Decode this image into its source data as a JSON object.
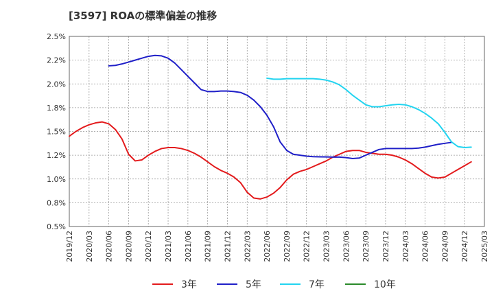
{
  "chart_data": {
    "type": "line",
    "title": "[3597]  ROAの標準偏差の推移",
    "xlabel": "",
    "ylabel": "",
    "ylim": [
      0.5,
      2.5
    ],
    "y_ticks": [
      0.5,
      0.75,
      1.0,
      1.25,
      1.5,
      1.75,
      2.0,
      2.25,
      2.5
    ],
    "y_tick_labels": [
      "0.5%",
      "0.8%",
      "1.0%",
      "1.2%",
      "1.5%",
      "1.8%",
      "2.0%",
      "2.2%",
      "2.5%"
    ],
    "x_tick_labels": [
      "2019/12",
      "2020/03",
      "2020/06",
      "2020/09",
      "2020/12",
      "2021/03",
      "2021/06",
      "2021/09",
      "2021/12",
      "2022/03",
      "2022/06",
      "2022/09",
      "2022/12",
      "2023/03",
      "2023/06",
      "2023/09",
      "2023/12",
      "2024/03",
      "2024/06",
      "2024/09",
      "2024/12",
      "2025/03"
    ],
    "grid": true,
    "legend_position": "bottom",
    "series": [
      {
        "name": "3年",
        "color": "#e31a1c",
        "start_index": 0,
        "values": [
          1.45,
          1.5,
          1.54,
          1.57,
          1.59,
          1.6,
          1.58,
          1.52,
          1.42,
          1.26,
          1.19,
          1.2,
          1.25,
          1.29,
          1.32,
          1.33,
          1.33,
          1.32,
          1.3,
          1.27,
          1.23,
          1.18,
          1.13,
          1.09,
          1.06,
          1.02,
          0.96,
          0.86,
          0.8,
          0.79,
          0.81,
          0.85,
          0.91,
          0.99,
          1.05,
          1.08,
          1.1,
          1.13,
          1.16,
          1.19,
          1.23,
          1.26,
          1.29,
          1.3,
          1.3,
          1.28,
          1.27,
          1.26,
          1.26,
          1.25,
          1.23,
          1.2,
          1.16,
          1.11,
          1.06,
          1.02,
          1.01,
          1.02,
          1.06,
          1.1,
          1.14,
          1.18
        ]
      },
      {
        "name": "5年",
        "color": "#1f1fc8",
        "start_index": 6,
        "values": [
          2.19,
          2.195,
          2.21,
          2.23,
          2.25,
          2.27,
          2.29,
          2.3,
          2.295,
          2.27,
          2.22,
          2.15,
          2.08,
          2.01,
          1.94,
          1.92,
          1.92,
          1.925,
          1.925,
          1.92,
          1.91,
          1.88,
          1.83,
          1.76,
          1.67,
          1.55,
          1.39,
          1.3,
          1.26,
          1.25,
          1.24,
          1.235,
          1.233,
          1.232,
          1.23,
          1.23,
          1.225,
          1.215,
          1.22,
          1.25,
          1.28,
          1.31,
          1.32,
          1.32,
          1.32,
          1.32,
          1.32,
          1.325,
          1.335,
          1.35,
          1.365,
          1.375,
          1.385
        ]
      },
      {
        "name": "7年",
        "color": "#22d4f0",
        "start_index": 30,
        "values": [
          2.06,
          2.05,
          2.05,
          2.055,
          2.055,
          2.055,
          2.055,
          2.055,
          2.05,
          2.04,
          2.02,
          1.99,
          1.94,
          1.88,
          1.83,
          1.78,
          1.76,
          1.76,
          1.77,
          1.78,
          1.785,
          1.78,
          1.76,
          1.73,
          1.69,
          1.64,
          1.58,
          1.49,
          1.39,
          1.34,
          1.33,
          1.335
        ]
      },
      {
        "name": "10年",
        "color": "#2a8a2a",
        "start_index": 0,
        "values": []
      }
    ]
  }
}
